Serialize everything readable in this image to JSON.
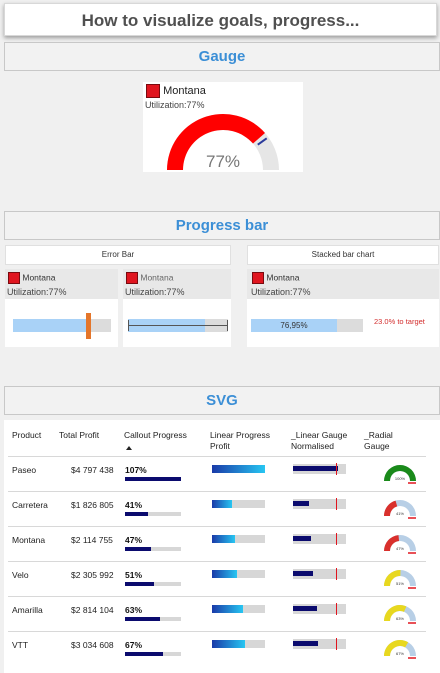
{
  "title": "How to visualize goals, progress...",
  "gauge_section": {
    "header": "Gauge",
    "legend_name": "Montana",
    "utilization_label": "Utilization:77%",
    "value_text": "77%",
    "value": 0.77,
    "colors": {
      "fill": "#ff0000",
      "track": "#e6e6e6",
      "target": "#2b3a9b"
    }
  },
  "progress_section": {
    "header": "Progress bar",
    "error_bar_caption": "Error Bar",
    "stacked_caption": "Stacked bar chart",
    "cards": [
      {
        "name": "Montana",
        "util": "Utilization:77%",
        "value": 0.77
      },
      {
        "name": "Montana",
        "util": "Utilization:77%",
        "value": 0.77
      },
      {
        "name": "Montana",
        "util": "Utilization:77%",
        "value": 0.7695,
        "bar_label": "76,95%",
        "target_text": "23.0% to target"
      }
    ]
  },
  "svg_section": {
    "header": "SVG",
    "columns": [
      "Product",
      "Total Profit",
      "Callout Progress",
      "Linear Progress Profit",
      "_Linear Gauge Normalised",
      "_Radial Gauge"
    ],
    "rows": [
      {
        "product": "Paseo",
        "profit": "$4 797 438",
        "callout": "107%",
        "progress": 1.07,
        "linear": 1.0,
        "gauge": 0.85,
        "radial_color": "#1a8a1a",
        "radial_value": 1.0,
        "radial_text": "100%"
      },
      {
        "product": "Carretera",
        "profit": "$1 826 805",
        "callout": "41%",
        "progress": 0.41,
        "linear": 0.38,
        "gauge": 0.3,
        "radial_color": "#d9302c",
        "radial_value": 0.41,
        "radial_text": "41%"
      },
      {
        "product": "Montana",
        "profit": "$2 114 755",
        "callout": "47%",
        "progress": 0.47,
        "linear": 0.44,
        "gauge": 0.34,
        "radial_color": "#d9302c",
        "radial_value": 0.47,
        "radial_text": "47%"
      },
      {
        "product": "Velo",
        "profit": "$2 305 992",
        "callout": "51%",
        "progress": 0.51,
        "linear": 0.48,
        "gauge": 0.37,
        "radial_color": "#e8d81f",
        "radial_value": 0.51,
        "radial_text": "51%"
      },
      {
        "product": "Amarilla",
        "profit": "$2 814 104",
        "callout": "63%",
        "progress": 0.63,
        "linear": 0.59,
        "gauge": 0.45,
        "radial_color": "#e8d81f",
        "radial_value": 0.63,
        "radial_text": "63%"
      },
      {
        "product": "VTT",
        "profit": "$3 034 608",
        "callout": "67%",
        "progress": 0.67,
        "linear": 0.63,
        "gauge": 0.48,
        "radial_color": "#e8d81f",
        "radial_value": 0.67,
        "radial_text": "67%"
      }
    ]
  }
}
